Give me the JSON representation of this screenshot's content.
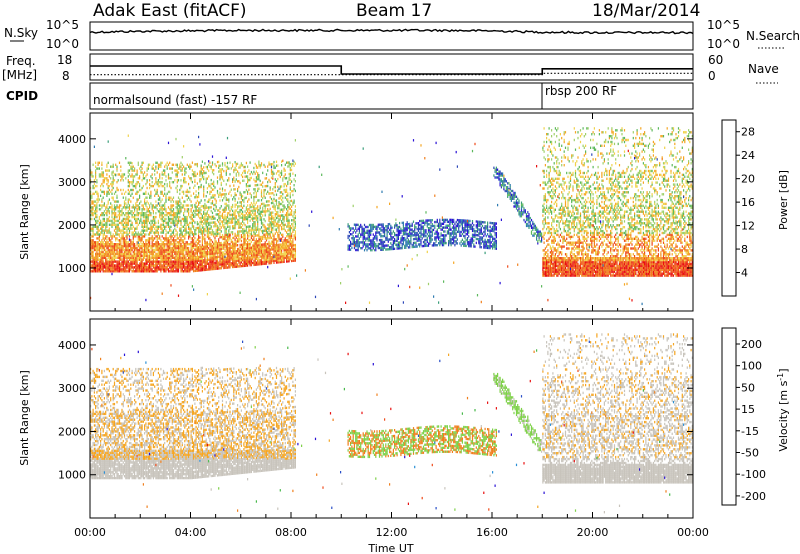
{
  "header": {
    "radar_title": "Adak East (fitACF)",
    "beam": "Beam 17",
    "date": "18/Mar/2014"
  },
  "labels": {
    "nsky": "N.Sky",
    "nsearch": "N.Search",
    "freq": "Freq.",
    "mhz": "[MHz]",
    "nave": "Nave",
    "cpid": "CPID",
    "cpid_left": "normalsound (fast) -157 RF",
    "cpid_right": "rbsp 200 RF",
    "ten_pow5": "10^5",
    "ten_pow0": "10^0",
    "freq_ticks": [
      "18",
      "8"
    ],
    "nave_ticks": [
      "60",
      "0"
    ]
  },
  "colors": {
    "power": [
      "#2a12d6",
      "#2c47b8",
      "#2e7bb0",
      "#3a9e7a",
      "#5cb85c",
      "#9ed06a",
      "#f0d24a",
      "#f5a623",
      "#f07f1d",
      "#ef4b1a",
      "#e81010"
    ],
    "velocity": [
      "#e81010",
      "#ef4b1a",
      "#f07f1d",
      "#f5a623",
      "#c8c4bc",
      "#c8c4bc",
      "#7fd14a",
      "#47b84a",
      "#2a8fd6",
      "#2a4fc8",
      "#2a12d6"
    ],
    "ground_scatter": "#c8c4bc"
  },
  "chart_data": [
    {
      "type": "line",
      "name": "N.Sky / N.Search",
      "ylabel": "N.Sky",
      "y2label": "N.Search",
      "yticks": [
        "10^0",
        "10^5"
      ],
      "approx_log_level_by_hour": [
        [
          0,
          3.6
        ],
        [
          2,
          3.8
        ],
        [
          4,
          3.9
        ],
        [
          6,
          4.0
        ],
        [
          8,
          4.0
        ],
        [
          10,
          4.0
        ],
        [
          12,
          4.0
        ],
        [
          14,
          4.0
        ],
        [
          16,
          3.9
        ],
        [
          18,
          3.6
        ],
        [
          20,
          3.5
        ],
        [
          22,
          3.5
        ],
        [
          24,
          3.5
        ]
      ]
    },
    {
      "type": "line",
      "name": "Freq / Nave",
      "ylabel": "Freq. [MHz]",
      "y2label": "Nave",
      "yticks": [
        "8",
        "18"
      ],
      "y2ticks": [
        "0",
        "60"
      ],
      "freq_steps": [
        [
          0,
          14
        ],
        [
          10,
          14
        ],
        [
          10,
          10
        ],
        [
          18,
          10
        ],
        [
          18,
          12.6
        ],
        [
          24,
          12.6
        ]
      ],
      "nave_steps": [
        [
          0,
          10
        ],
        [
          10,
          10
        ],
        [
          10,
          10
        ],
        [
          18,
          10
        ],
        [
          18,
          14
        ],
        [
          24,
          14
        ]
      ]
    },
    {
      "type": "heatmap",
      "name": "Power",
      "xlabel": "Time UT",
      "ylabel": "Slant Range [km]",
      "colorbar_label": "Power [dB]",
      "colorbar_ticks": [
        4,
        8,
        12,
        16,
        20,
        24,
        28
      ],
      "xticks": [
        "00:00",
        "04:00",
        "08:00",
        "12:00",
        "16:00",
        "20:00",
        "00:00"
      ],
      "yticks": [
        1000,
        2000,
        3000,
        4000
      ],
      "ylim": [
        0,
        4600
      ],
      "xlim_hours": [
        0,
        24
      ]
    },
    {
      "type": "heatmap",
      "name": "Velocity",
      "xlabel": "Time UT",
      "ylabel": "Slant Range [km]",
      "colorbar_label": "Velocity [m s^-1]",
      "colorbar_ticks": [
        "200",
        "100",
        "50",
        "15",
        "-15",
        "-50",
        "-100",
        "-200"
      ],
      "xticks": [
        "00:00",
        "04:00",
        "08:00",
        "12:00",
        "16:00",
        "20:00",
        "00:00"
      ],
      "yticks": [
        1000,
        2000,
        3000,
        4000
      ],
      "ylim": [
        0,
        4600
      ],
      "xlim_hours": [
        0,
        24
      ]
    }
  ],
  "axis": {
    "time_label": "Time UT",
    "slant_range": "Slant Range [km]",
    "power_label": "Power [dB]",
    "velocity_label": "Velocity [m s"
  }
}
